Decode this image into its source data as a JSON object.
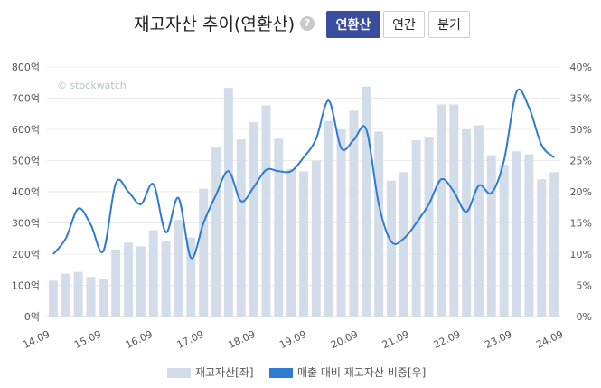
{
  "header": {
    "title": "재고자산 추이(연환산)",
    "help_icon": "question-circle-icon",
    "buttons": [
      "연환산",
      "연간",
      "분기"
    ],
    "active_button": "연환산"
  },
  "watermark": "© stockwatch",
  "colors": {
    "bar": "#d3dde9",
    "line": "#2e7bd4",
    "active": "#3a4d9c"
  },
  "legend": {
    "bar_label": "재고자산[좌]",
    "line_label": "매출 대비 재고자산 비중[우]"
  },
  "chart_data": {
    "type": "bar+line",
    "x_tick_labels": [
      "14.09",
      "15.09",
      "16.09",
      "17.09",
      "18.09",
      "19.09",
      "20.09",
      "21.09",
      "22.09",
      "23.09",
      "24.09"
    ],
    "y_left_ticks": [
      "0억",
      "100억",
      "200억",
      "300억",
      "400억",
      "500억",
      "600억",
      "700억",
      "800억"
    ],
    "y_right_ticks": [
      "0%",
      "5%",
      "10%",
      "15%",
      "20%",
      "25%",
      "30%",
      "35%",
      "40%"
    ],
    "ylim_left": [
      0,
      800
    ],
    "ylim_right": [
      0,
      40
    ],
    "grid": true,
    "legend_position": "bottom",
    "series": [
      {
        "name": "재고자산[좌]",
        "axis": "left",
        "type": "bar",
        "values": [
          115,
          137,
          143,
          127,
          120,
          215,
          237,
          225,
          277,
          243,
          310,
          253,
          410,
          543,
          733,
          568,
          623,
          677,
          570,
          473,
          465,
          500,
          627,
          600,
          660,
          737,
          593,
          435,
          463,
          565,
          575,
          680,
          680,
          600,
          613,
          517,
          487,
          530,
          520,
          440,
          463
        ]
      },
      {
        "name": "매출 대비 재고자산 비중[우]",
        "axis": "right",
        "type": "line",
        "values": [
          10,
          12.5,
          17.3,
          14.7,
          10.5,
          21.4,
          20,
          18,
          21.2,
          13.5,
          19,
          9.4,
          15,
          19.5,
          23.3,
          18.5,
          20.7,
          23.5,
          23.3,
          23.3,
          25.5,
          28.5,
          34.6,
          27,
          28.3,
          30,
          18,
          12,
          12.5,
          15,
          18,
          22,
          20,
          16.8,
          21,
          19.8,
          25,
          36,
          33.5,
          27.5,
          25.5
        ]
      }
    ]
  }
}
